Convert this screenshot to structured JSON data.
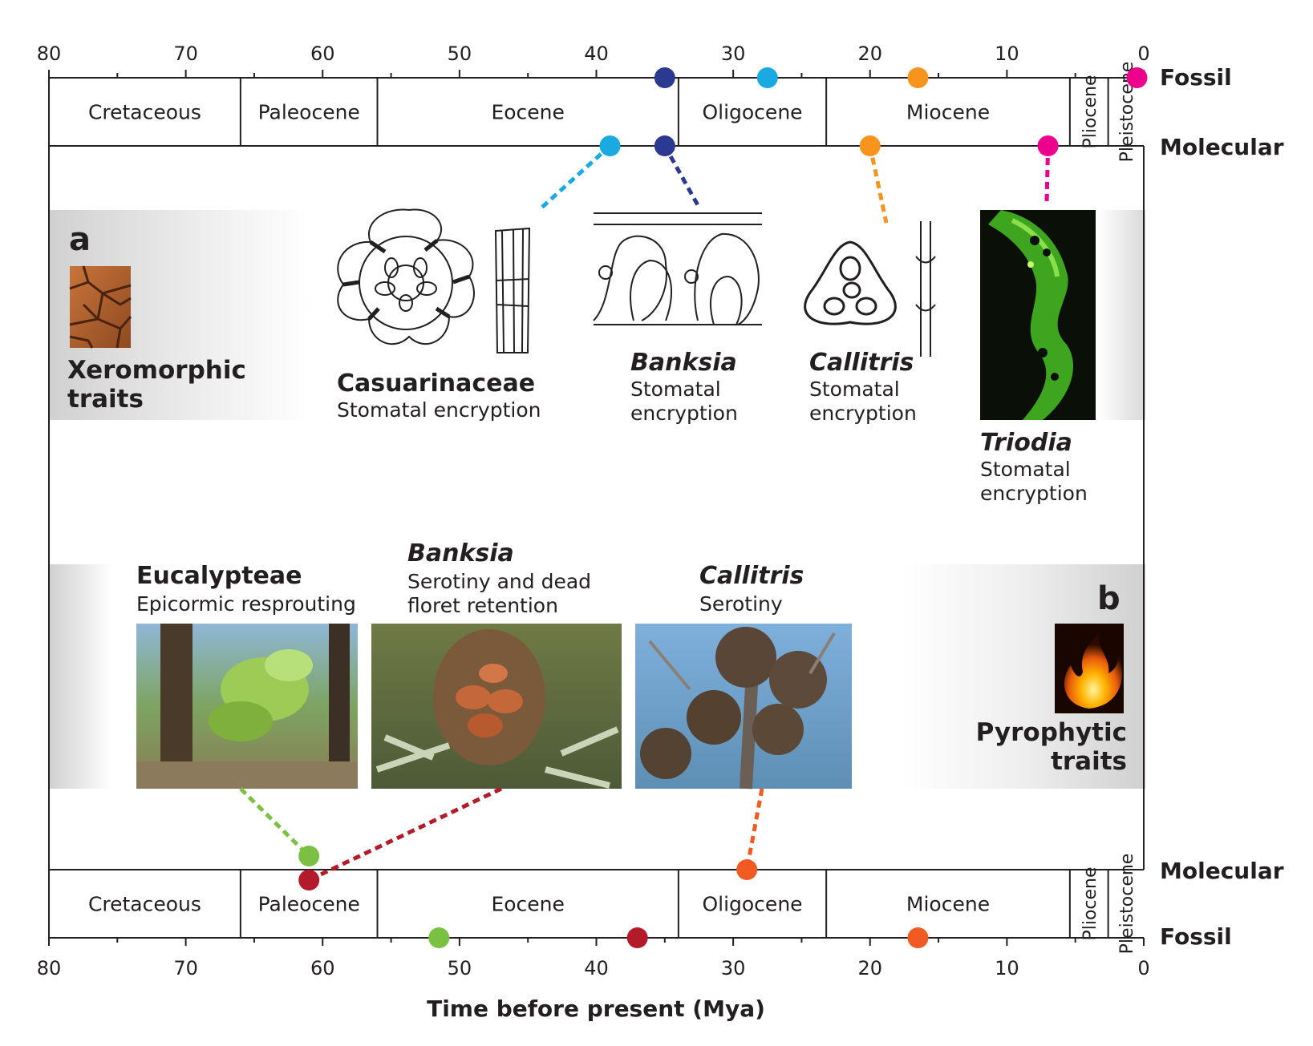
{
  "axis": {
    "ticks": [
      80,
      70,
      60,
      50,
      40,
      30,
      20,
      10,
      0
    ],
    "title": "Time before present (Mya)",
    "range": [
      80,
      0
    ]
  },
  "periods": [
    {
      "label": "Cretaceous",
      "start": 80,
      "end": 66,
      "vertical": false
    },
    {
      "label": "Paleocene",
      "start": 66,
      "end": 56,
      "vertical": false
    },
    {
      "label": "Eocene",
      "start": 56,
      "end": 34,
      "vertical": false
    },
    {
      "label": "Oligocene",
      "start": 34,
      "end": 23.2,
      "vertical": false
    },
    {
      "label": "Miocene",
      "start": 23.2,
      "end": 5.4,
      "vertical": false
    },
    {
      "label": "Pliocene",
      "start": 5.4,
      "end": 2.6,
      "vertical": true
    },
    {
      "label": "Pleistocene",
      "start": 2.6,
      "end": 0,
      "vertical": true
    }
  ],
  "lanes": {
    "top_fossil": "Fossil",
    "top_molecular": "Molecular",
    "bottom_molecular": "Molecular",
    "bottom_fossil": "Fossil"
  },
  "panel_a": {
    "letter": "a",
    "title_line1": "Xeromorphic",
    "title_line2": "traits",
    "taxa": [
      {
        "name": "Casuarinaceae",
        "italic": false,
        "desc": [
          "Stomatal encryption"
        ]
      },
      {
        "name": "Banksia",
        "italic": true,
        "desc": [
          "Stomatal",
          "encryption"
        ]
      },
      {
        "name": "Callitris",
        "italic": true,
        "desc": [
          "Stomatal",
          "encryption"
        ]
      },
      {
        "name": "Triodia",
        "italic": true,
        "desc": [
          "Stomatal",
          "encryption"
        ]
      }
    ]
  },
  "panel_b": {
    "letter": "b",
    "title_line1": "Pyrophytic",
    "title_line2": "traits",
    "taxa": [
      {
        "name": "Eucalypteae",
        "italic": false,
        "desc": [
          "Epicormic resprouting"
        ]
      },
      {
        "name": "Banksia",
        "italic": true,
        "desc": [
          "Serotiny and dead",
          "floret retention"
        ]
      },
      {
        "name": "Callitris",
        "italic": true,
        "desc": [
          "Serotiny"
        ]
      }
    ]
  },
  "colors": {
    "casuarinaceae": "#1ba9e1",
    "banksia_a": "#2b3990",
    "callitris_a": "#f7941d",
    "triodia": "#ec008c",
    "eucalypteae": "#7ac143",
    "banksia_b": "#b31b2b",
    "callitris_b": "#f15a22"
  },
  "chart_data": {
    "type": "timeline",
    "xlabel": "Time before present (Mya)",
    "xlim": [
      80,
      0
    ],
    "top_events": [
      {
        "taxon": "Casuarinaceae",
        "fossil": 27.5,
        "molecular": 39
      },
      {
        "taxon": "Banksia",
        "fossil": 35,
        "molecular": 35
      },
      {
        "taxon": "Callitris",
        "fossil": 16.5,
        "molecular": 20
      },
      {
        "taxon": "Triodia",
        "fossil": 0.5,
        "molecular": 7
      }
    ],
    "bottom_events": [
      {
        "taxon": "Eucalypteae",
        "fossil": 51.5,
        "molecular": 61
      },
      {
        "taxon": "Banksia",
        "fossil": 37,
        "molecular": 61
      },
      {
        "taxon": "Callitris",
        "fossil": 16.5,
        "molecular": 29
      }
    ]
  }
}
